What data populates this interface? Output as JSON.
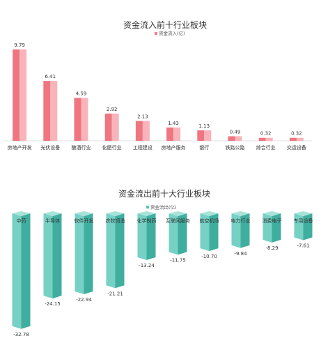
{
  "chart_data": [
    {
      "type": "bar",
      "title": "资金流入前十行业板块",
      "categories": [
        "房地产开发",
        "光伏设备",
        "酿酒行业",
        "化肥行业",
        "工程建设",
        "房地产服务",
        "银行",
        "铁路公路",
        "综合行业",
        "交运设备"
      ],
      "series": [
        {
          "name": "资金流入(亿)",
          "values": [
            9.79,
            6.41,
            4.59,
            2.92,
            2.13,
            1.43,
            1.13,
            0.49,
            0.32,
            0.32
          ],
          "labels": [
            "9.79",
            "6.41",
            "4.59",
            "2.92",
            "2.13",
            "1.43",
            "1.13",
            "0.49",
            "0.32",
            "0.32"
          ]
        }
      ],
      "ylim": [
        0,
        10
      ],
      "grid": false,
      "legend_position": "top-right",
      "color": "#f27e87"
    },
    {
      "type": "bar",
      "title": "资金流出前十大行业板块",
      "categories": [
        "中药",
        "半导体",
        "软件开发",
        "农牧饲渔",
        "化学制药",
        "互联网服务",
        "航空机场",
        "电力行业",
        "消费电子",
        "专用设备"
      ],
      "series": [
        {
          "name": "资金流出(亿)",
          "values": [
            -32.78,
            -24.15,
            -22.94,
            -21.21,
            -13.24,
            -11.75,
            -10.7,
            -9.84,
            -8.29,
            -7.61
          ],
          "labels": [
            "-32.78",
            "-24.15",
            "-22.94",
            "-21.21",
            "-13.24",
            "-11.75",
            "-10.70",
            "-9.84",
            "-8.29",
            "-7.61"
          ]
        }
      ],
      "ylim": [
        -35,
        0
      ],
      "grid": false,
      "legend_position": "top",
      "color": "#5cc2b5"
    }
  ]
}
